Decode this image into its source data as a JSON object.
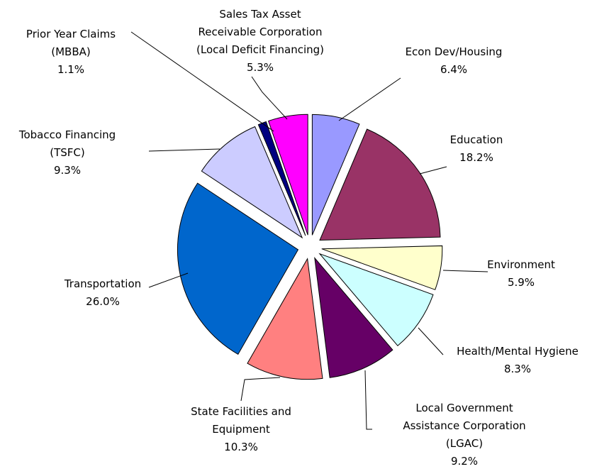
{
  "chart_data": {
    "type": "pie",
    "categories": [
      "Econ Dev/Housing",
      "Education",
      "Environment",
      "Health/Mental Hygiene",
      "Local Government\nAssistance Corporation\n(LGAC)",
      "State Facilities and\nEquipment",
      "Transportation",
      "Tobacco Financing\n(TSFC)",
      "Prior Year Claims\n(MBBA)",
      "Sales Tax Asset\nReceivable Corporation\n(Local Deficit Financing)"
    ],
    "values": [
      6.4,
      18.2,
      5.9,
      8.3,
      9.2,
      10.3,
      26.0,
      9.3,
      1.1,
      5.3
    ],
    "value_labels": [
      "6.4%",
      "18.2%",
      "5.9%",
      "8.3%",
      "9.2%",
      "10.3%",
      "26.0%",
      "9.3%",
      "1.1%",
      "5.3%"
    ],
    "colors": [
      "#9999ff",
      "#993366",
      "#ffffcc",
      "#ccffff",
      "#660066",
      "#ff8080",
      "#0066cc",
      "#ccccff",
      "#000080",
      "#ff00ff"
    ]
  }
}
